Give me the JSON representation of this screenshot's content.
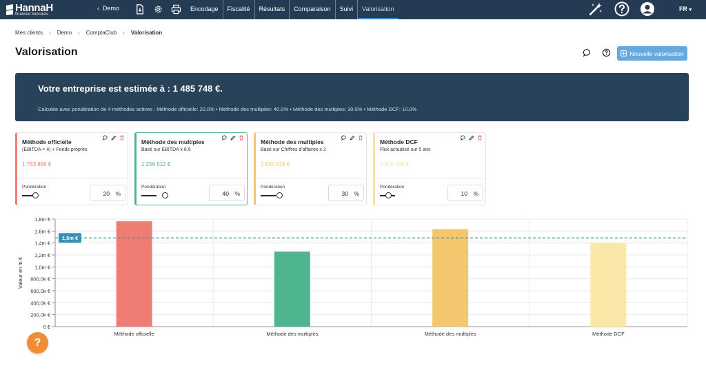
{
  "app": {
    "logo_name": "HannaH",
    "logo_tagline": "financial forecasts",
    "back_label": "Demo",
    "nav": [
      "Encodage",
      "Fiscalité",
      "Résultats",
      "Comparaison",
      "Suivi",
      "Valorisation"
    ],
    "active_nav": "Valorisation",
    "lang": "FR"
  },
  "breadcrumb": [
    "Mes clients",
    "Demo",
    "ComptaClub",
    "Valorisation"
  ],
  "page": {
    "title": "Valorisation",
    "new_button": "Nouvelle valorisation"
  },
  "banner": {
    "headline": "Votre entreprise est estimée à : 1 485 748 €.",
    "sub": "Calculée avec pondération de 4 méthodes actives : Méthode officielle: 20.0% • Méthode des multiples: 40.0% • Méthode des multiples: 30.0% • Méthode DCF: 10.0%"
  },
  "cards": [
    {
      "title": "Méthode officielle",
      "subtitle": "(EBITDA × 4) + Fonds propres",
      "value": "1 763 896 €",
      "weight_label": "Pondération",
      "weight": "20",
      "unit": "%",
      "color": "#ef7d75",
      "weight_fraction": 0.2
    },
    {
      "title": "Méthode des multiples",
      "subtitle": "Basé sur EBITDA x 6.5",
      "value": "1 256 512 €",
      "weight_label": "Pondération",
      "weight": "40",
      "unit": "%",
      "color": "#4fb58f",
      "weight_fraction": 0.4
    },
    {
      "title": "Méthode des multiples",
      "subtitle": "Basé sur Chiffres d'affaires x 2",
      "value": "1 632 616 €",
      "weight_label": "Pondération",
      "weight": "30",
      "unit": "%",
      "color": "#f4c76e",
      "weight_fraction": 0.3
    },
    {
      "title": "Méthode DCF",
      "subtitle": "Flux actualisé sur 5 ans",
      "value": "1 405 788 €",
      "weight_label": "Pondération",
      "weight": "10",
      "unit": "%",
      "color": "#f6e3a3",
      "weight_fraction": 0.1
    }
  ],
  "chart_data": {
    "type": "bar",
    "categories": [
      "Méthode officielle",
      "Méthode des multiples",
      "Méthode des multiples",
      "Méthode DCF"
    ],
    "values": [
      1763896,
      1256512,
      1632616,
      1405788
    ],
    "colors": [
      "#ef7d75",
      "#4fb58f",
      "#f4c76e",
      "#fbe8a9"
    ],
    "ylabel": "Valeur en m €",
    "ylim": [
      0,
      1800000
    ],
    "yticks": [
      0,
      200000,
      400000,
      600000,
      800000,
      1000000,
      1200000,
      1400000,
      1600000,
      1800000
    ],
    "ytick_labels": [
      "0 €",
      "200,0k €",
      "400,0k €",
      "600,0k €",
      "800,0k €",
      "1,0m €",
      "1,2m €",
      "1,4m €",
      "1,6m €",
      "1,8m €"
    ],
    "reference_line": {
      "value": 1485748,
      "label": "1,5m €",
      "color": "#3a8fb7"
    },
    "grid": true
  },
  "help_label": "?"
}
